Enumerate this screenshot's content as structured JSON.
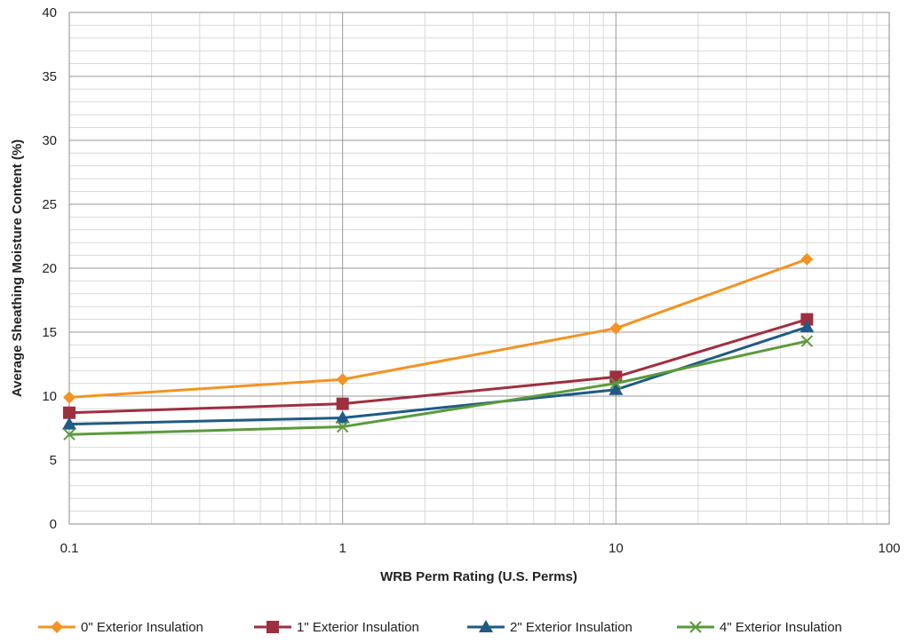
{
  "chart_data": {
    "type": "line",
    "x_scale": "log",
    "xlabel": "WRB Perm Rating (U.S. Perms)",
    "ylabel": "Average Sheathing Moisture Content (%)",
    "xlim": [
      0.1,
      100
    ],
    "ylim": [
      0,
      40
    ],
    "x_ticks": [
      0.1,
      1,
      10,
      100
    ],
    "x_tick_labels": [
      "0.1",
      "1",
      "10",
      "100"
    ],
    "y_ticks": [
      0,
      5,
      10,
      15,
      20,
      25,
      30,
      35,
      40
    ],
    "y_tick_labels": [
      "0",
      "5",
      "10",
      "15",
      "20",
      "25",
      "30",
      "35",
      "40"
    ],
    "grid": true,
    "legend_position": "bottom",
    "x": [
      0.1,
      1,
      10,
      50
    ],
    "series": [
      {
        "name": "0\" Exterior Insulation",
        "color": "#f39322",
        "marker": "diamond",
        "values": [
          9.9,
          11.3,
          15.3,
          20.7
        ]
      },
      {
        "name": "1\" Exterior Insulation",
        "color": "#9e2f3f",
        "marker": "square",
        "values": [
          8.7,
          9.4,
          11.5,
          16.0
        ]
      },
      {
        "name": "2\" Exterior Insulation",
        "color": "#1f5b85",
        "marker": "triangle",
        "values": [
          7.8,
          8.3,
          10.5,
          15.4
        ]
      },
      {
        "name": "4\" Exterior Insulation",
        "color": "#5b9a3c",
        "marker": "x",
        "values": [
          7.0,
          7.6,
          11.0,
          14.3
        ]
      }
    ]
  }
}
